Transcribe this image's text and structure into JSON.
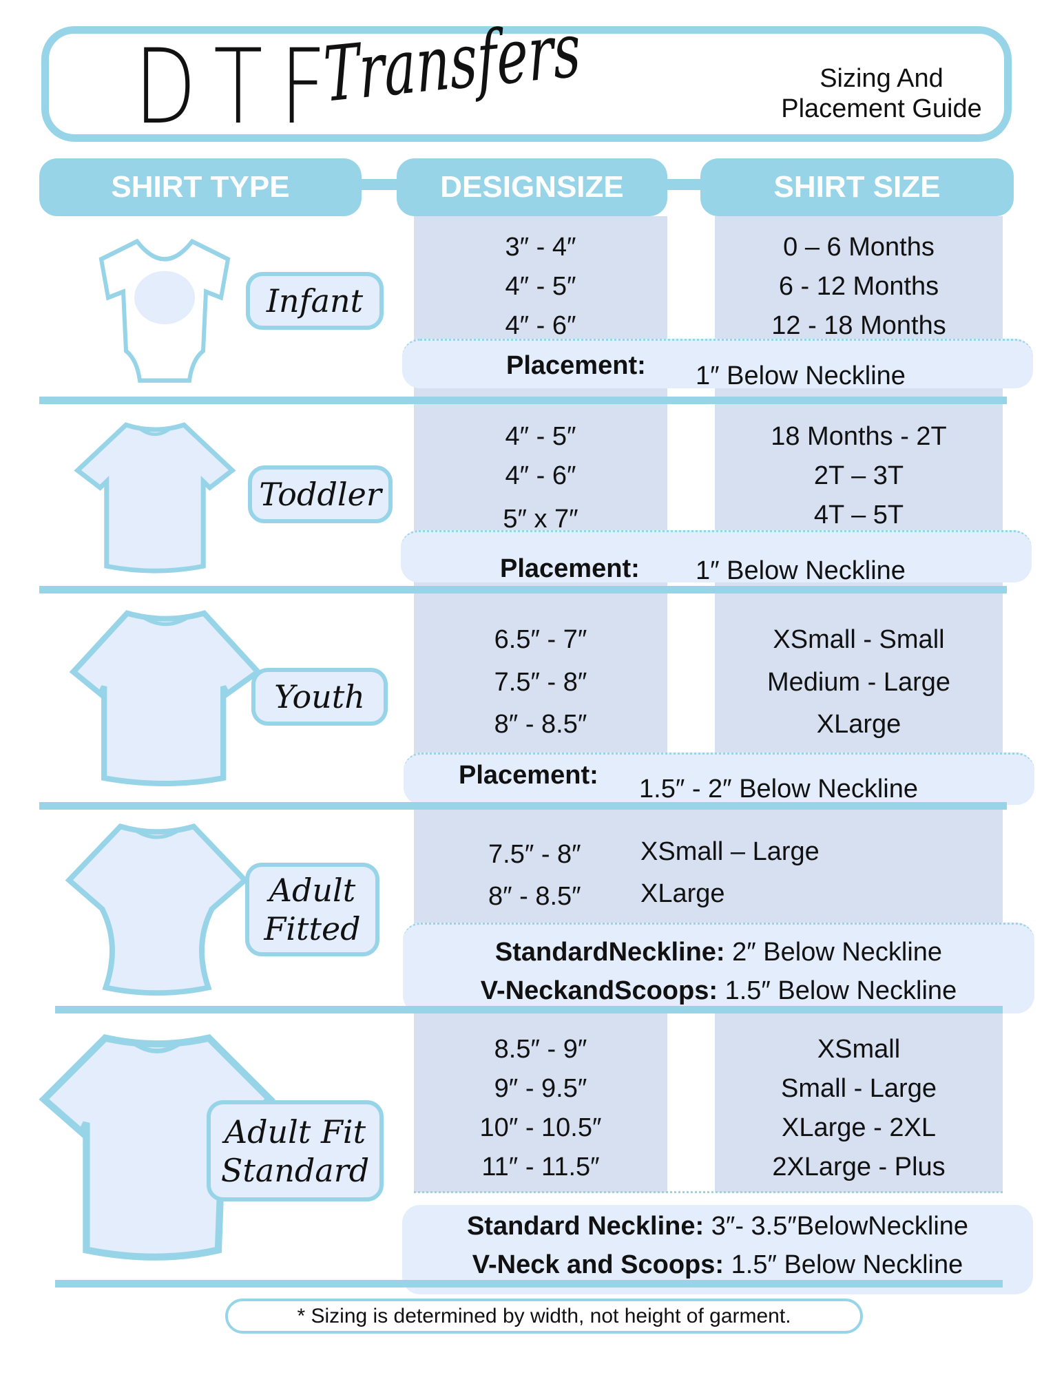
{
  "header": {
    "logo_dtf": "DTF",
    "logo_transfers": "Transfers",
    "subtitle_line1": "Sizing And",
    "subtitle_line2": "Placement Guide"
  },
  "columns": {
    "shirt_type": "SHIRT TYPE",
    "design_size": "DESIGNSIZE",
    "shirt_size": "SHIRT SIZE"
  },
  "colors": {
    "accent": "#98d4e8",
    "column_bg": "#d6e0f0",
    "placement_bg": "#e3edfb"
  },
  "sections": [
    {
      "type": "Infant",
      "design_sizes": [
        "3″ - 4″",
        "4″ - 5″",
        "4″ - 6″"
      ],
      "shirt_sizes": [
        "0 – 6 Months",
        "6 - 12 Months",
        "12 - 18 Months"
      ],
      "placement_label": "Placement:",
      "placement_value": "1″ Below Neckline"
    },
    {
      "type": "Toddler",
      "design_sizes": [
        "4″ - 5″",
        "4″ - 6″",
        "5″ x 7″"
      ],
      "shirt_sizes": [
        "18 Months - 2T",
        "2T – 3T",
        "4T – 5T"
      ],
      "placement_label": "Placement:",
      "placement_value": "1″ Below Neckline"
    },
    {
      "type": "Youth",
      "design_sizes": [
        "6.5″ - 7″",
        "7.5″ - 8″",
        "8″ - 8.5″"
      ],
      "shirt_sizes": [
        "XSmall - Small",
        "Medium - Large",
        "XLarge"
      ],
      "placement_label": "Placement:",
      "placement_value": "1.5″ - 2″ Below Neckline"
    },
    {
      "type_line1": "Adult",
      "type_line2": "Fitted",
      "design_sizes": [
        "7.5″ - 8″",
        "8″ - 8.5″"
      ],
      "shirt_sizes": [
        "XSmall – Large",
        "XLarge"
      ],
      "placements": [
        {
          "label": "StandardNeckline:",
          "value": "2″ Below Neckline"
        },
        {
          "label": "V-NeckandScoops:",
          "value": "1.5″ Below Neckline"
        }
      ]
    },
    {
      "type_line1": "Adult Fit",
      "type_line2": "Standard",
      "design_sizes": [
        "8.5″ - 9″",
        "9″ - 9.5″",
        "10″ - 10.5″",
        "11″ - 11.5″"
      ],
      "shirt_sizes": [
        "XSmall",
        "Small - Large",
        "XLarge - 2XL",
        "2XLarge - Plus"
      ],
      "placements": [
        {
          "label": "Standard Neckline:",
          "value": "3″- 3.5″BelowNeckline"
        },
        {
          "label": "V-Neck and Scoops:",
          "value": "1.5″ Below Neckline"
        }
      ]
    }
  ],
  "footer": "* Sizing is determined by width, not height of garment."
}
